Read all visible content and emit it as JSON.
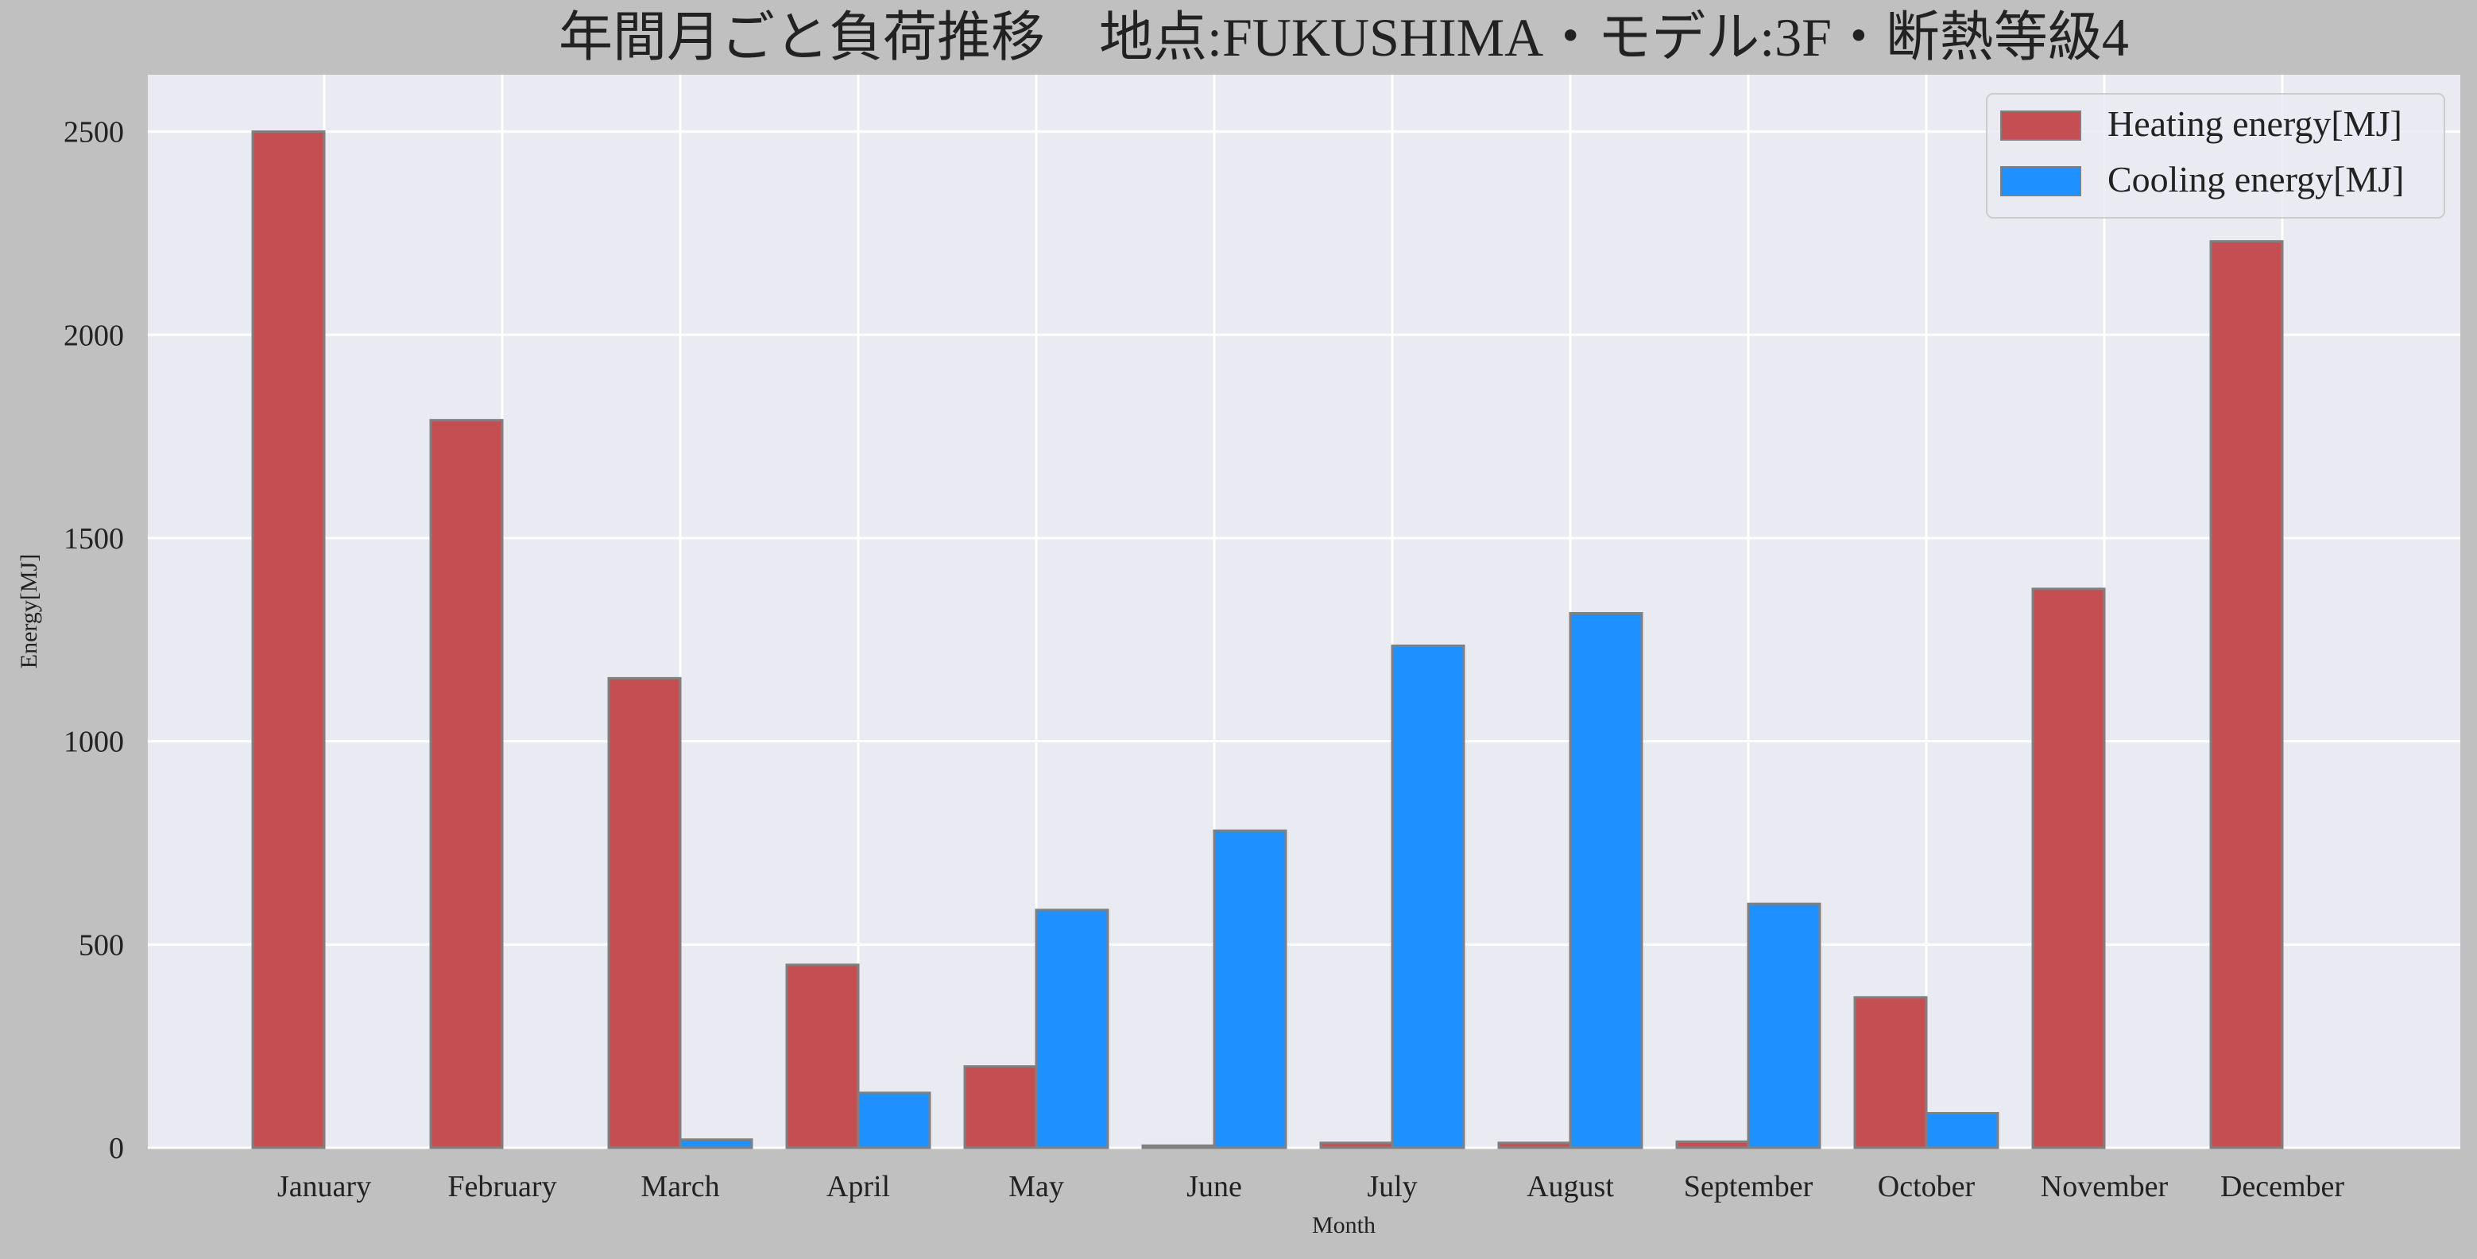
{
  "chart_data": {
    "type": "bar",
    "title": "年間月ごと負荷推移　地点:FUKUSHIMA・モデル:3F・断熱等級4",
    "xlabel": "Month",
    "ylabel": "Energy[MJ]",
    "ylim": [
      0,
      2640
    ],
    "yticks": [
      0,
      500,
      1000,
      1500,
      2000,
      2500
    ],
    "grid": true,
    "legend_position": "top-right",
    "categories": [
      "January",
      "February",
      "March",
      "April",
      "May",
      "June",
      "July",
      "August",
      "September",
      "October",
      "November",
      "December"
    ],
    "series": [
      {
        "name": "Heating energy[MJ]",
        "color": "#c44e52",
        "values": [
          2500,
          1790,
          1155,
          450,
          200,
          5,
          12,
          12,
          15,
          370,
          1375,
          2230
        ]
      },
      {
        "name": "Cooling energy[MJ]",
        "color": "#1e90ff",
        "values": [
          0,
          0,
          20,
          135,
          585,
          780,
          1235,
          1315,
          600,
          85,
          0,
          0
        ]
      }
    ],
    "colors": {
      "page_background": "#c0c0c0",
      "plot_background": "#eaeaf2",
      "grid": "#ffffff",
      "bar_edge": "#808080",
      "text": "#222222"
    }
  }
}
